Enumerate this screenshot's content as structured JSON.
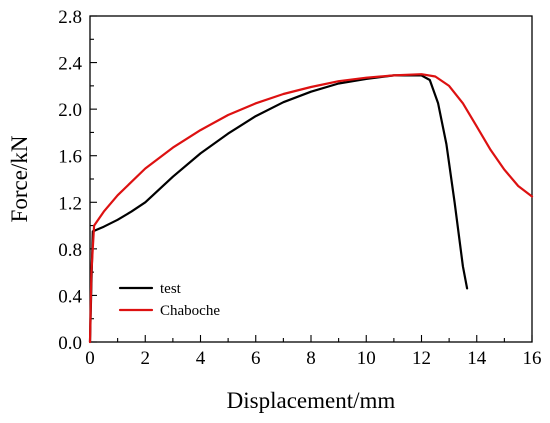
{
  "chart_data": {
    "type": "line",
    "xlabel": "Displacement/mm",
    "ylabel": "Force/kN",
    "xlim": [
      0,
      16
    ],
    "ylim": [
      0,
      2.8
    ],
    "xticks": [
      "0",
      "2",
      "4",
      "6",
      "8",
      "10",
      "12",
      "14",
      "16"
    ],
    "yticks": [
      "0.0",
      "0.4",
      "0.8",
      "1.2",
      "1.6",
      "2.0",
      "2.4",
      "2.8"
    ],
    "legend_position": "bottom-left",
    "series": [
      {
        "name": "test",
        "color": "#000000",
        "x": [
          0,
          0.05,
          0.1,
          0.5,
          1.0,
          1.5,
          2.0,
          3.0,
          4.0,
          5.0,
          6.0,
          7.0,
          8.0,
          9.0,
          10.0,
          11.0,
          12.0,
          12.3,
          12.6,
          12.9,
          13.2,
          13.5,
          13.65
        ],
        "y": [
          0,
          0.5,
          0.95,
          0.99,
          1.05,
          1.12,
          1.2,
          1.42,
          1.62,
          1.79,
          1.94,
          2.06,
          2.15,
          2.22,
          2.26,
          2.29,
          2.29,
          2.25,
          2.05,
          1.7,
          1.2,
          0.65,
          0.46
        ]
      },
      {
        "name": "Chaboche",
        "color": "#dd1111",
        "x": [
          0,
          0.05,
          0.15,
          0.5,
          1.0,
          2.0,
          3.0,
          4.0,
          5.0,
          6.0,
          7.0,
          8.0,
          9.0,
          10.0,
          11.0,
          12.0,
          12.5,
          13.0,
          13.5,
          14.0,
          14.5,
          15.0,
          15.5,
          16.0
        ],
        "y": [
          0,
          0.6,
          1.0,
          1.12,
          1.26,
          1.49,
          1.67,
          1.82,
          1.95,
          2.05,
          2.13,
          2.19,
          2.24,
          2.27,
          2.29,
          2.3,
          2.28,
          2.2,
          2.05,
          1.85,
          1.65,
          1.48,
          1.34,
          1.25
        ]
      }
    ]
  }
}
